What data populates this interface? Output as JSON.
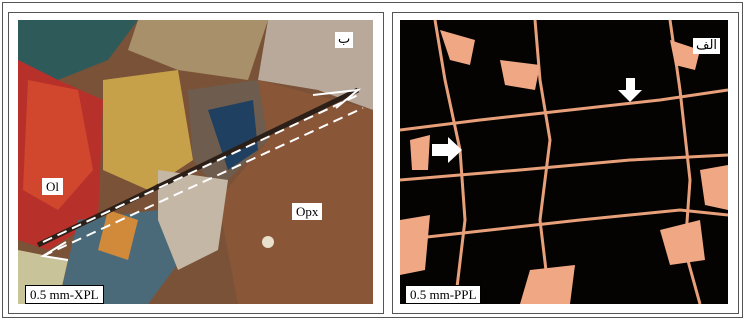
{
  "panels": [
    {
      "label": "ب",
      "scale": "0.5 mm-XPL",
      "annotations": [
        "Ol",
        "Opx"
      ]
    },
    {
      "label": "الف",
      "scale": "0.5 mm-PPL"
    }
  ]
}
